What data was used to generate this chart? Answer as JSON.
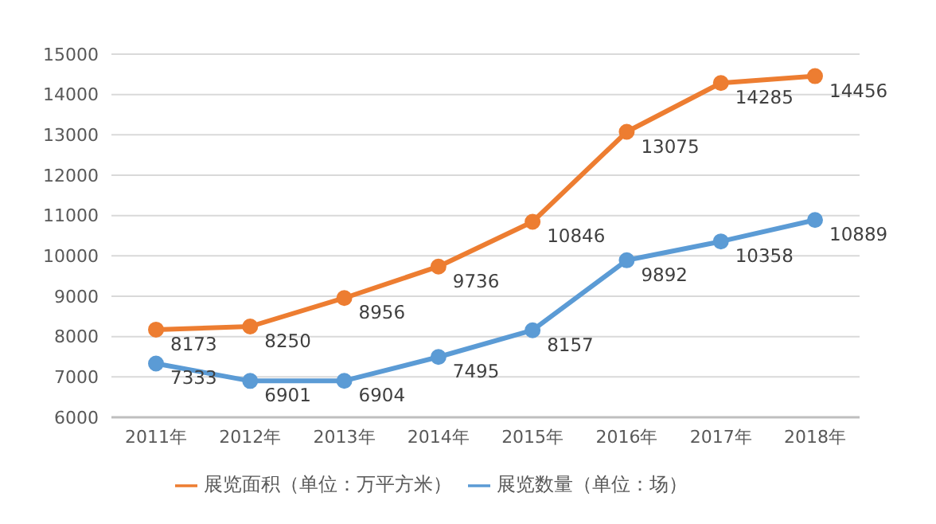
{
  "chart_data": {
    "type": "line",
    "categories": [
      "2011年",
      "2012年",
      "2013年",
      "2014年",
      "2015年",
      "2016年",
      "2017年",
      "2018年"
    ],
    "series": [
      {
        "name": "展览面积（单位：万平方米）",
        "color": "#ed7d31",
        "values": [
          8173,
          8250,
          8956,
          9736,
          10846,
          13075,
          14285,
          14456
        ]
      },
      {
        "name": "展览数量（单位：场）",
        "color": "#5b9bd5",
        "values": [
          7333,
          6901,
          6904,
          7495,
          8157,
          9892,
          10358,
          10889
        ]
      }
    ],
    "ylim": [
      6000,
      15000
    ],
    "yticks": [
      6000,
      7000,
      8000,
      9000,
      10000,
      11000,
      12000,
      13000,
      14000,
      15000
    ],
    "grid": "y",
    "legend": "bottom",
    "marker": "circle",
    "line_style": "solid",
    "data_labels": true
  }
}
